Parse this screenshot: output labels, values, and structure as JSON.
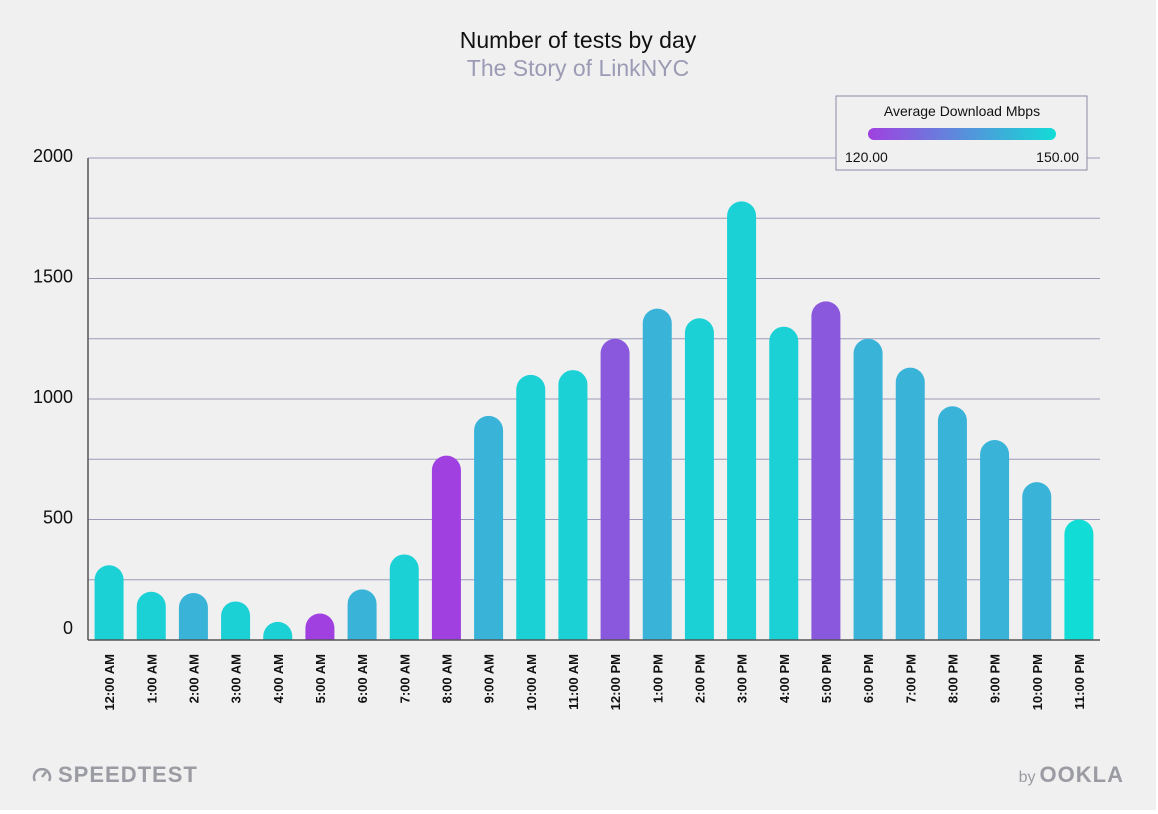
{
  "chart_data": {
    "type": "bar",
    "title": "Number of tests by day",
    "subtitle": "The Story of LinkNYC",
    "xlabel": "",
    "ylabel": "",
    "ylim": [
      0,
      2000
    ],
    "yticks": [
      0,
      500,
      1000,
      1500,
      2000
    ],
    "grid": true,
    "categories": [
      "12:00 AM",
      "1:00 AM",
      "2:00 AM",
      "3:00 AM",
      "4:00 AM",
      "5:00 AM",
      "6:00 AM",
      "7:00 AM",
      "8:00 AM",
      "9:00 AM",
      "10:00 AM",
      "11:00 AM",
      "12:00 PM",
      "1:00 PM",
      "2:00 PM",
      "3:00 PM",
      "4:00 PM",
      "5:00 PM",
      "6:00 PM",
      "7:00 PM",
      "8:00 PM",
      "9:00 PM",
      "10:00 PM",
      "11:00 PM"
    ],
    "values": [
      310,
      200,
      195,
      160,
      75,
      110,
      210,
      355,
      765,
      930,
      1100,
      1120,
      1250,
      1375,
      1335,
      1820,
      1300,
      1405,
      1250,
      1130,
      970,
      830,
      655,
      500
    ],
    "colors": [
      "#1bd1d5",
      "#1bd1d5",
      "#3ab3d9",
      "#1bd1d5",
      "#1bd1d5",
      "#a040e0",
      "#3ab3d9",
      "#1bd1d5",
      "#a040e0",
      "#3ab3d9",
      "#1bd1d5",
      "#1bd1d5",
      "#8a58dd",
      "#3ab3d9",
      "#1bd1d5",
      "#1bd1d5",
      "#1bd1d5",
      "#8a58dd",
      "#3ab3d9",
      "#3ab3d9",
      "#3ab3d9",
      "#3ab3d9",
      "#3ab3d9",
      "#12dcd6"
    ],
    "legend": {
      "title": "Average Download Mbps",
      "min_label": "120.00",
      "max_label": "150.00",
      "color_low": "#a040e0",
      "color_high": "#12dcd6",
      "placement": "top-right"
    }
  },
  "footer": {
    "left_logo": "SPEEDTEST",
    "right_by": "by",
    "right_logo": "OOKLA"
  },
  "colors": {
    "background": "#f0f0f0",
    "gridline": "#9a9ab8",
    "axis": "#444444",
    "subtitle": "#9b9bb5"
  }
}
